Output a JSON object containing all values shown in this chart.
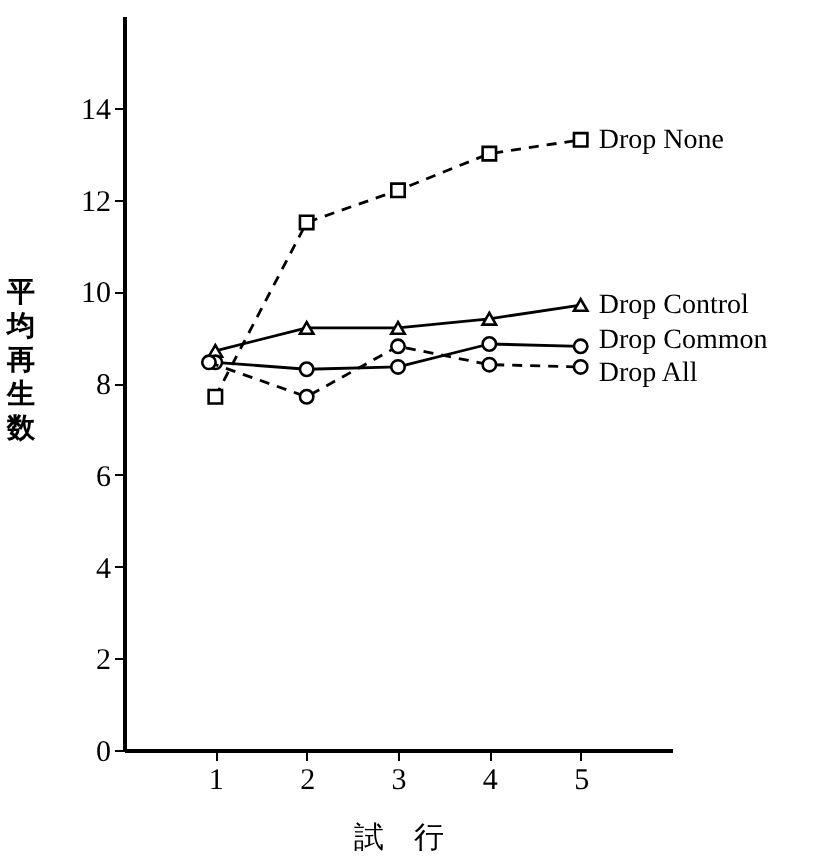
{
  "chart_data": {
    "type": "line",
    "xlabel": "試　行",
    "ylabel": "平均再生数",
    "x": [
      1,
      2,
      3,
      4,
      5
    ],
    "series": [
      {
        "name": "Drop None",
        "color": "#000000",
        "marker": "square",
        "line_style": "dashed",
        "values": [
          7.7,
          11.5,
          12.2,
          13.0,
          13.3
        ]
      },
      {
        "name": "Drop Control",
        "color": "#000000",
        "marker": "triangle",
        "line_style": "solid",
        "values": [
          8.7,
          9.2,
          9.2,
          9.4,
          9.7
        ]
      },
      {
        "name": "Drop Common",
        "color": "#000000",
        "marker": "circle",
        "line_style": "solid",
        "values": [
          8.45,
          8.3,
          8.35,
          8.85,
          8.8
        ]
      },
      {
        "name": "Drop All",
        "color": "#000000",
        "marker": "circle",
        "line_style": "dashed",
        "x": [
          0.93,
          2,
          3,
          4,
          5
        ],
        "values": [
          8.45,
          7.7,
          8.8,
          8.4,
          8.35
        ]
      }
    ],
    "xlim": [
      0,
      6
    ],
    "xticks": [
      1,
      2,
      3,
      4,
      5
    ],
    "ylim": [
      0,
      16
    ],
    "yticks": [
      0,
      2,
      4,
      6,
      8,
      10,
      12,
      14
    ],
    "grid": false
  }
}
